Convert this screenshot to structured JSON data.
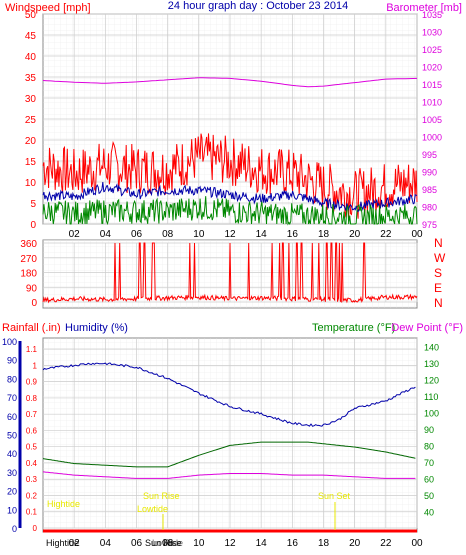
{
  "chart_data": [
    {
      "type": "line",
      "title": "24 hour graph day : October 23 2014",
      "left_axis_label": "Windspeed [mph]",
      "right_axis_label": "Barometer [mb]",
      "x_ticks": [
        "02",
        "04",
        "06",
        "08",
        "10",
        "12",
        "14",
        "16",
        "18",
        "20",
        "22",
        "00"
      ],
      "y_left_ticks": [
        0,
        5,
        10,
        15,
        20,
        25,
        30,
        35,
        40,
        45,
        50
      ],
      "y_left_lim": [
        0,
        50
      ],
      "y_right_ticks": [
        975,
        980,
        985,
        990,
        995,
        1000,
        1005,
        1010,
        1015,
        1020,
        1025,
        1030,
        1035
      ],
      "y_right_lim": [
        975,
        1035
      ],
      "grid": true,
      "colors": {
        "wind": "#ff0000",
        "gust_avg": "#0000aa",
        "wind_low": "#008800",
        "barometer": "#dd00dd"
      },
      "series": [
        {
          "name": "Barometer",
          "color": "#dd00dd",
          "axis": "right",
          "x": [
            0,
            2,
            4,
            6,
            8,
            10,
            12,
            14,
            16,
            17,
            18,
            20,
            22,
            24
          ],
          "values": [
            1016.0,
            1015.5,
            1015.2,
            1015.6,
            1016.2,
            1016.8,
            1016.6,
            1015.8,
            1014.6,
            1014.2,
            1014.4,
            1015.4,
            1016.4,
            1016.6
          ]
        },
        {
          "color": "#ff0000",
          "axis": "left",
          "x": [
            0,
            2,
            4,
            6,
            8,
            10,
            12,
            14,
            16,
            18,
            20,
            22,
            24
          ],
          "values": [
            14,
            12,
            14,
            13,
            13,
            16,
            15,
            13,
            12,
            9,
            7,
            9,
            10
          ]
        },
        {
          "color": "#0000aa",
          "axis": "left",
          "x": [
            0,
            2,
            4,
            6,
            8,
            10,
            12,
            14,
            16,
            18,
            20,
            22,
            24
          ],
          "values": [
            7,
            6.5,
            9,
            7,
            8,
            8,
            7,
            6,
            7,
            5,
            4,
            5,
            6
          ]
        },
        {
          "color": "#008800",
          "axis": "left",
          "x": [
            0,
            2,
            4,
            6,
            8,
            10,
            12,
            14,
            16,
            18,
            20,
            22,
            24
          ],
          "values": [
            3,
            2.5,
            3,
            3,
            3,
            4,
            3,
            2.5,
            2,
            2,
            1.5,
            2,
            2
          ]
        }
      ]
    },
    {
      "type": "line",
      "right_axis_labels": [
        "N",
        "W",
        "S",
        "E",
        "N"
      ],
      "y_ticks": [
        0,
        90,
        180,
        270,
        360
      ],
      "y_lim": [
        0,
        360
      ],
      "grid": true,
      "series": [
        {
          "color": "#ff0000",
          "x": [
            0,
            2,
            4,
            6,
            8,
            10,
            12,
            14,
            16,
            18,
            20,
            22,
            24
          ],
          "values": [
            10,
            20,
            15,
            20,
            25,
            30,
            20,
            25,
            20,
            15,
            10,
            30,
            30
          ]
        }
      ]
    },
    {
      "type": "line",
      "left_axis_label_1": "Rainfall (.in)",
      "left_axis_label_2": "Humidity (%)",
      "right_axis_label_1": "Temperature (°F)",
      "right_axis_label_2": "Dew Point (°F)",
      "x_ticks": [
        "02",
        "04",
        "06",
        "08",
        "10",
        "12",
        "14",
        "16",
        "18",
        "20",
        "22",
        "00"
      ],
      "rain_ticks": [
        0,
        0.1,
        0.2,
        0.3,
        0.4,
        0.5,
        0.6,
        0.7,
        0.8,
        0.9,
        1,
        1.1
      ],
      "humidity_ticks": [
        0,
        10,
        20,
        30,
        40,
        50,
        60,
        70,
        80,
        90,
        100
      ],
      "temp_ticks": [
        40,
        50,
        60,
        70,
        80,
        90,
        100,
        110,
        120,
        130,
        140
      ],
      "temp_lim": [
        30,
        145
      ],
      "humidity_lim": [
        0,
        100
      ],
      "grid": true,
      "annotations": [
        "Hightide",
        "Lowtide",
        "Sun Rise",
        "Sun Set"
      ],
      "bottom_labels": [
        "Hightide",
        "Sun Rise",
        "Lowtide"
      ],
      "series": [
        {
          "name": "Humidity (%)",
          "color": "#0000aa",
          "axis": "humidity",
          "x": [
            0,
            1,
            2,
            3,
            4,
            6,
            8,
            10,
            12,
            14,
            16,
            17,
            18,
            19,
            20,
            22,
            23,
            24
          ],
          "values": [
            85,
            86,
            87,
            88,
            88,
            86,
            80,
            72,
            65,
            61,
            56,
            55,
            55,
            58,
            64,
            68,
            72,
            76
          ]
        },
        {
          "name": "Temperature (°F)",
          "color": "#006600",
          "axis": "temp",
          "x": [
            0,
            2,
            4,
            6,
            7,
            8,
            10,
            12,
            14,
            16,
            17,
            18,
            20,
            22,
            23,
            24
          ],
          "values": [
            72,
            69,
            68,
            67,
            67,
            67,
            74,
            80,
            82,
            82,
            82,
            81,
            79,
            76,
            74,
            72
          ]
        },
        {
          "name": "Dew Point (°F)",
          "color": "#dd00dd",
          "axis": "temp",
          "x": [
            0,
            2,
            4,
            6,
            8,
            10,
            12,
            14,
            16,
            18,
            20,
            22,
            24
          ],
          "values": [
            64,
            62,
            61,
            60,
            60,
            62,
            63,
            63,
            62,
            62,
            61,
            60,
            60
          ]
        }
      ]
    }
  ]
}
